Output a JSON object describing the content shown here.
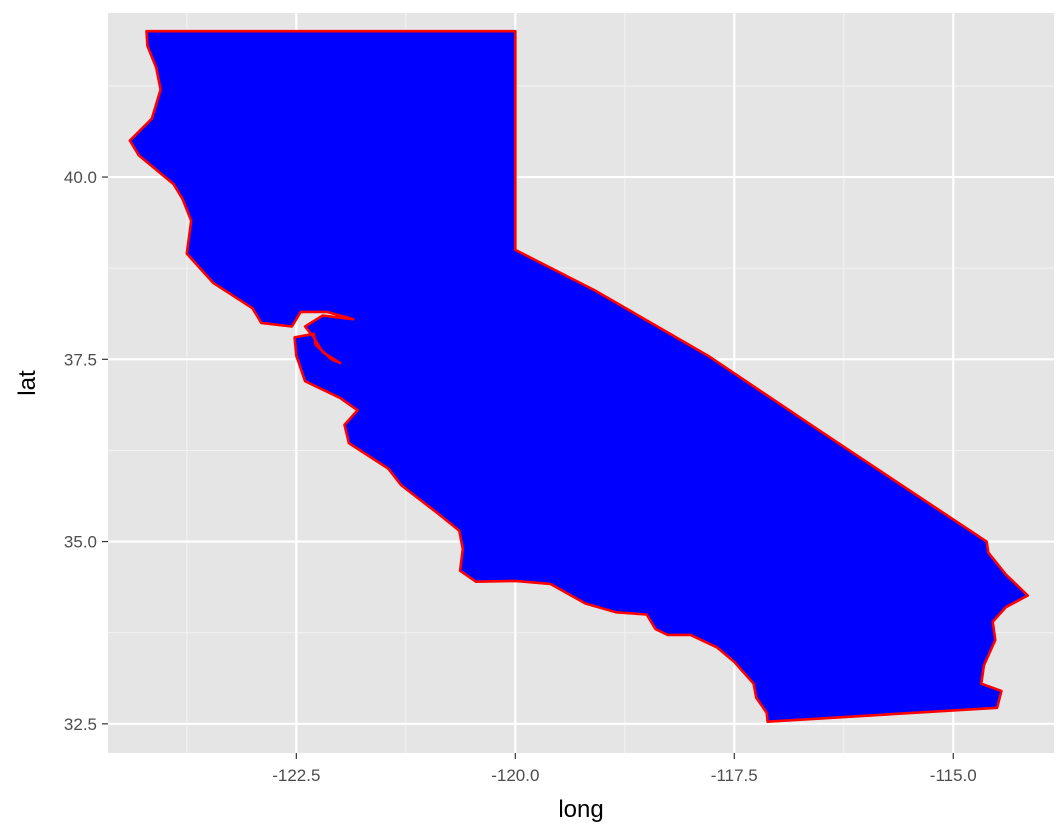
{
  "colors": {
    "panel_background": "#e5e5e5",
    "grid_major": "#ffffff",
    "grid_minor": "#f2f2f2",
    "state_fill": "#0000ff",
    "state_outline": "#ff0000",
    "tick": "#333333"
  },
  "chart_data": {
    "type": "map",
    "region": "California",
    "xlabel": "long",
    "ylabel": "lat",
    "xlim": [
      -124.65,
      -113.85
    ],
    "ylim": [
      32.1,
      42.25
    ],
    "x_ticks": [
      -122.5,
      -120.0,
      -117.5,
      -115.0
    ],
    "x_tick_labels": [
      "-122.5",
      "-120.0",
      "-117.5",
      "-115.0"
    ],
    "y_ticks": [
      32.5,
      35.0,
      37.5,
      40.0
    ],
    "y_tick_labels": [
      "32.5",
      "35.0",
      "37.5",
      "40.0"
    ],
    "grid": true,
    "legend": false,
    "polygon": [
      [
        -124.21,
        42.0
      ],
      [
        -120.0,
        42.0
      ],
      [
        -120.0,
        39.0
      ],
      [
        -119.1,
        38.45
      ],
      [
        -117.8,
        37.55
      ],
      [
        -116.5,
        36.5
      ],
      [
        -114.62,
        35.0
      ],
      [
        -114.6,
        34.85
      ],
      [
        -114.4,
        34.55
      ],
      [
        -114.15,
        34.26
      ],
      [
        -114.4,
        34.1
      ],
      [
        -114.55,
        33.9
      ],
      [
        -114.52,
        33.65
      ],
      [
        -114.65,
        33.3
      ],
      [
        -114.68,
        33.05
      ],
      [
        -114.45,
        32.95
      ],
      [
        -114.5,
        32.72
      ],
      [
        -117.12,
        32.53
      ],
      [
        -117.13,
        32.65
      ],
      [
        -117.25,
        32.86
      ],
      [
        -117.28,
        33.05
      ],
      [
        -117.5,
        33.35
      ],
      [
        -117.7,
        33.55
      ],
      [
        -118.0,
        33.72
      ],
      [
        -118.26,
        33.72
      ],
      [
        -118.4,
        33.8
      ],
      [
        -118.5,
        34.0
      ],
      [
        -118.85,
        34.03
      ],
      [
        -119.2,
        34.15
      ],
      [
        -119.6,
        34.42
      ],
      [
        -120.0,
        34.46
      ],
      [
        -120.45,
        34.45
      ],
      [
        -120.63,
        34.6
      ],
      [
        -120.6,
        34.9
      ],
      [
        -120.64,
        35.15
      ],
      [
        -120.9,
        35.4
      ],
      [
        -121.3,
        35.77
      ],
      [
        -121.45,
        36.0
      ],
      [
        -121.9,
        36.35
      ],
      [
        -121.95,
        36.6
      ],
      [
        -121.8,
        36.8
      ],
      [
        -122.0,
        36.97
      ],
      [
        -122.4,
        37.2
      ],
      [
        -122.5,
        37.55
      ],
      [
        -122.52,
        37.8
      ],
      [
        -122.3,
        37.85
      ],
      [
        -122.28,
        37.7
      ],
      [
        -122.1,
        37.5
      ],
      [
        -122.0,
        37.45
      ],
      [
        -122.2,
        37.6
      ],
      [
        -122.3,
        37.8
      ],
      [
        -122.4,
        37.95
      ],
      [
        -122.2,
        38.1
      ],
      [
        -121.85,
        38.05
      ],
      [
        -122.15,
        38.15
      ],
      [
        -122.45,
        38.15
      ],
      [
        -122.55,
        37.95
      ],
      [
        -122.9,
        38.0
      ],
      [
        -123.0,
        38.2
      ],
      [
        -123.45,
        38.55
      ],
      [
        -123.75,
        38.95
      ],
      [
        -123.7,
        39.4
      ],
      [
        -123.8,
        39.7
      ],
      [
        -123.9,
        39.9
      ],
      [
        -124.3,
        40.3
      ],
      [
        -124.4,
        40.5
      ],
      [
        -124.15,
        40.8
      ],
      [
        -124.05,
        41.2
      ],
      [
        -124.1,
        41.5
      ],
      [
        -124.2,
        41.8
      ],
      [
        -124.21,
        42.0
      ]
    ]
  }
}
